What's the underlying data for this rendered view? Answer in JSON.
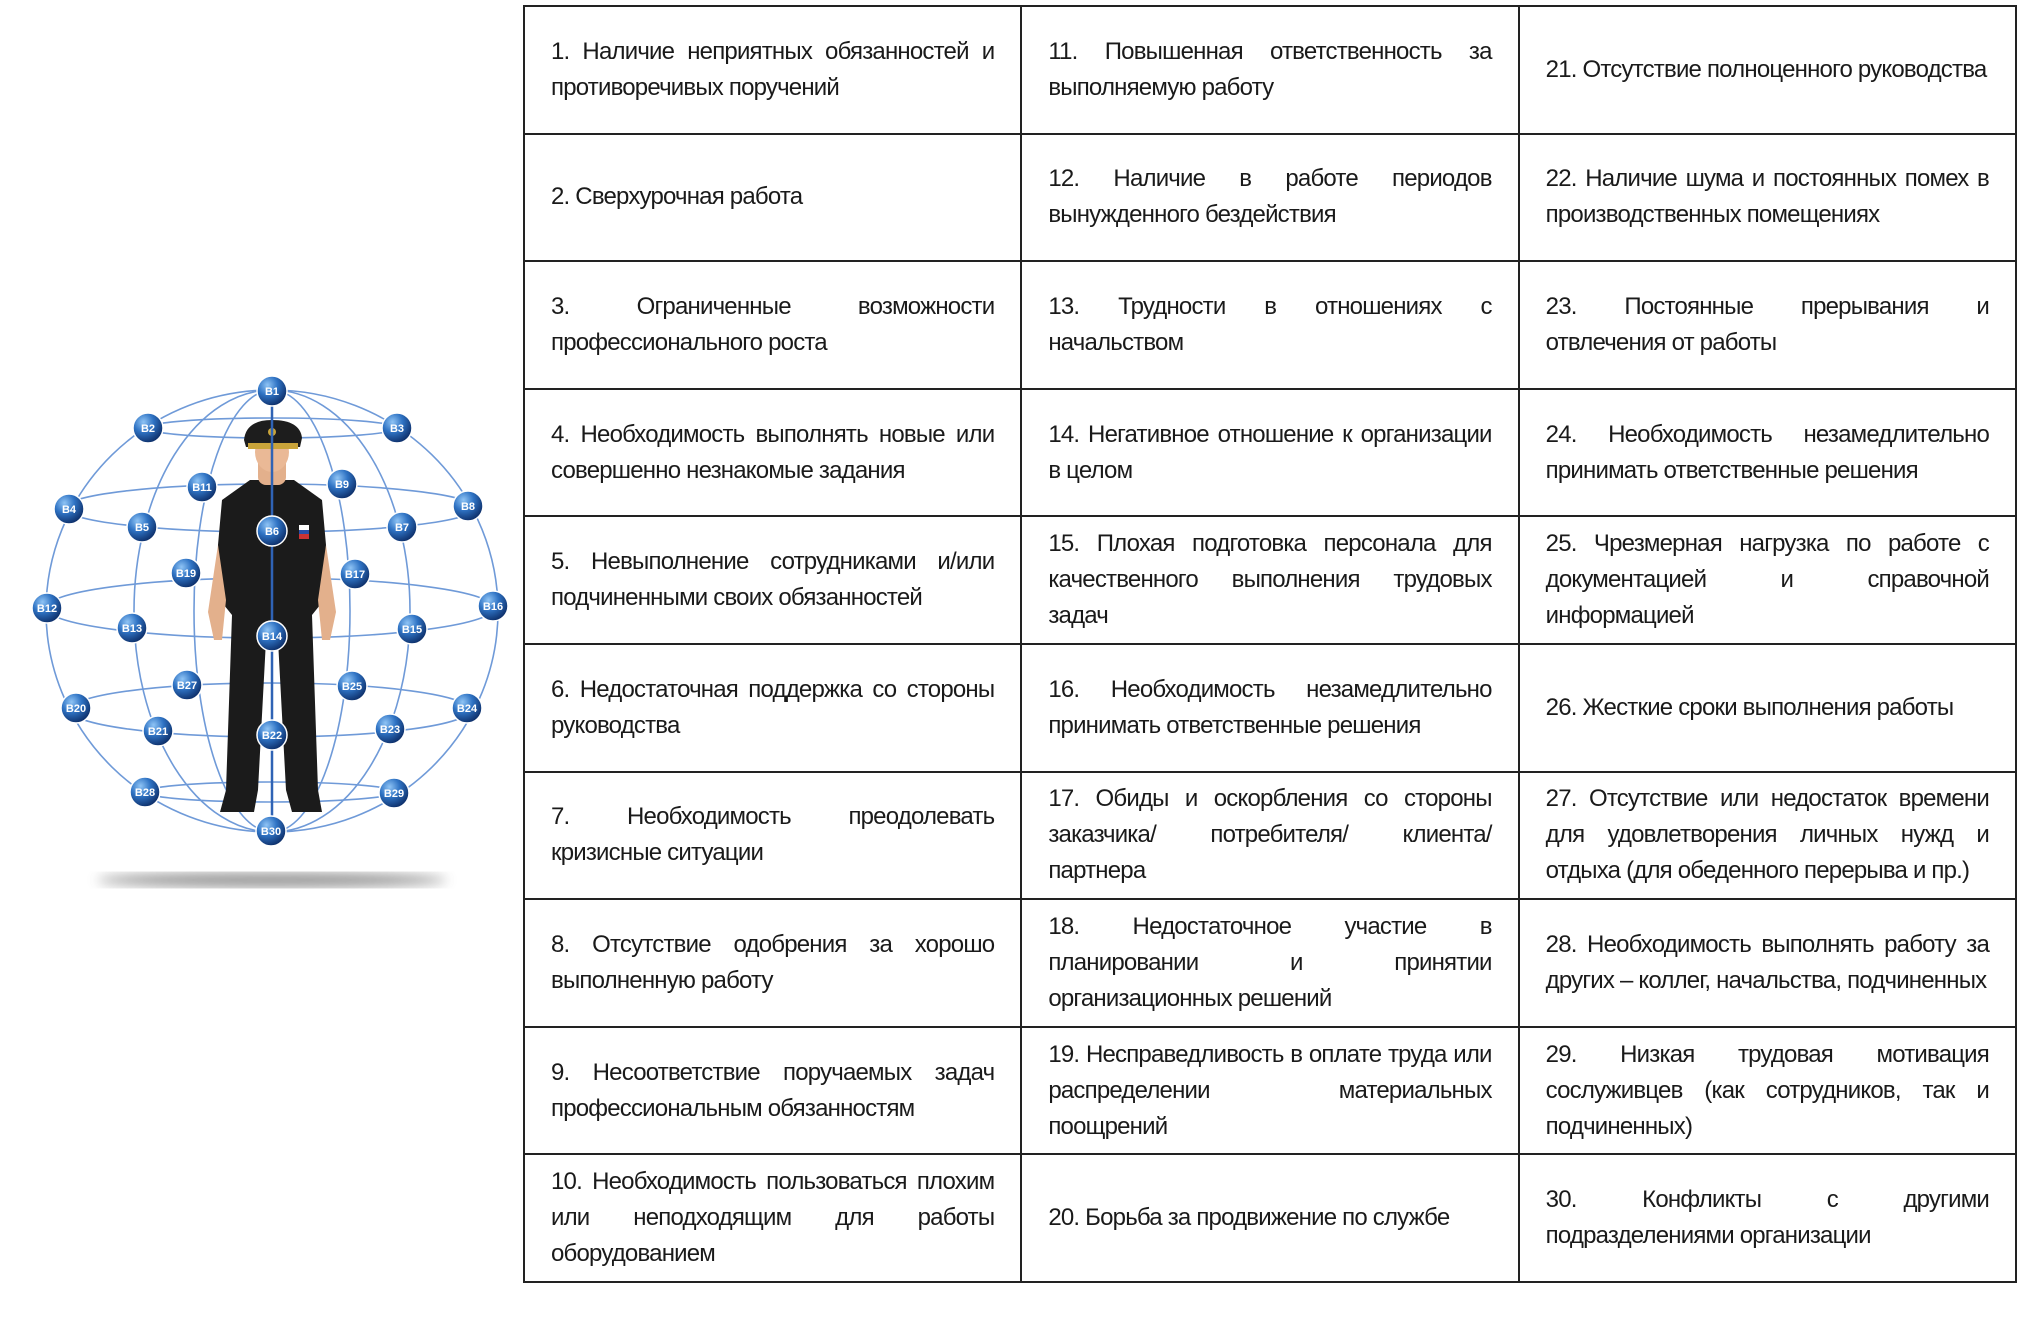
{
  "colors": {
    "node": "#1f5fae",
    "node_dark": "#0d2f6b",
    "grid_line": "#6f9ad8",
    "border": "#222222",
    "uniform": "#1b1b1b"
  },
  "sphere": {
    "nodes": [
      "В1",
      "В2",
      "В3",
      "В4",
      "В5",
      "В6",
      "В7",
      "В8",
      "В9",
      "В11",
      "В12",
      "В13",
      "В14",
      "В15",
      "В16",
      "В17",
      "В19",
      "В20",
      "В21",
      "В22",
      "В23",
      "В24",
      "В25",
      "В27",
      "В28",
      "В29",
      "В30"
    ]
  },
  "factors": [
    "1. Наличие неприятных обязанностей и противоречивых поручений",
    "2. Сверхурочная работа",
    "3. Ограниченные возможности профессионального роста",
    "4. Необходимость выполнять новые или совершенно незнакомые задания",
    "5. Невыполнение сотрудниками и/или подчиненными своих обязанностей",
    "6. Недостаточная поддержка со стороны руководства",
    "7. Необходимость преодолевать кризисные ситуации",
    "8. Отсутствие одобрения за хорошо выполненную работу",
    "9. Несоответствие поручаемых задач профессиональным обязанностям",
    "10. Необходимость пользоваться плохим или неподходящим для работы оборудованием",
    "11. Повышенная ответственность за выполняемую работу",
    "12. Наличие в работе периодов вынужденного бездействия",
    "13. Трудности в отношениях с начальством",
    "14. Негативное отношение к организации в целом",
    "15. Плохая подготовка персонала для качественного выполнения трудовых задач",
    "16. Необходимость незамедлительно принимать ответственные решения",
    "17. Обиды и оскорбления со стороны заказчика/ потребителя/ клиента/ партнера",
    "18. Недостаточное участие в планировании и принятии организационных решений",
    "19. Несправедливость в оплате труда или распределении материальных поощрений",
    "20. Борьба за продвижение по службе",
    "21. Отсутствие полноценного руководства",
    "22. Наличие шума и постоянных помех в производственных помещениях",
    "23. Постоянные прерывания и отвлечения от работы",
    "24. Необходимость незамедлительно принимать ответственные решения",
    "25. Чрезмерная нагрузка по работе с документацией и справочной информацией",
    "26. Жесткие сроки выполнения работы",
    "27. Отсутствие или недостаток времени для удовлетворения личных нужд и отдыха (для обеденного перерыва и пр.)",
    "28. Необходимость выполнять работу за других – коллег, начальства, подчиненных",
    "29. Низкая трудовая мотивация сослуживцев (как сотрудников, так и подчиненных)",
    "30. Конфликты с другими подразделениями организации"
  ]
}
